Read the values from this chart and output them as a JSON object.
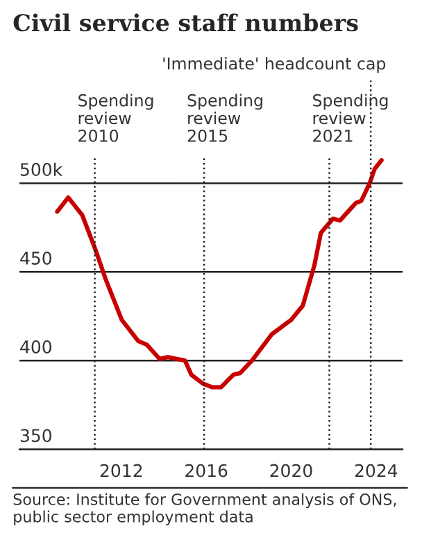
{
  "chart_data": {
    "type": "line",
    "title": "Civil service staff numbers",
    "x": [
      2008.98,
      2009.5,
      2010.16,
      2010.8,
      2011.26,
      2012.02,
      2012.8,
      2013.2,
      2013.8,
      2014.2,
      2015.0,
      2015.3,
      2015.85,
      2016.28,
      2016.7,
      2017.27,
      2017.6,
      2018.15,
      2019.1,
      2020.0,
      2020.55,
      2021.1,
      2021.4,
      2021.97,
      2022.3,
      2023.06,
      2023.3,
      2023.7,
      2023.93,
      2024.26
    ],
    "series": [
      {
        "color": "#c70000",
        "values": [
          484,
          492,
          482,
          462,
          446,
          423,
          411,
          409,
          401,
          402,
          400,
          392,
          387,
          385,
          385,
          392,
          393,
          400,
          415,
          423,
          431,
          454,
          472,
          480,
          479,
          489,
          490,
          500,
          508,
          513
        ]
      }
    ],
    "xlim": [
      2007.2,
      2025.25
    ],
    "xticks": [
      2012,
      2016,
      2020,
      2024
    ],
    "ylim": [
      350,
      515
    ],
    "yticks": [
      350,
      400,
      450,
      {
        "value": 500,
        "label": "500k"
      }
    ],
    "grid": "y",
    "marker": "none",
    "line_style": "solid",
    "ref_lines": [
      {
        "axis": "x",
        "value": 2010.75,
        "label": "Spending\nreview\n2010",
        "line_style": "dotted"
      },
      {
        "axis": "x",
        "value": 2015.9,
        "label": "Spending\nreview\n2015",
        "line_style": "dotted"
      },
      {
        "axis": "x",
        "value": 2021.8,
        "label": "Spending\nreview\n2021",
        "line_style": "dotted"
      },
      {
        "axis": "x",
        "value": 2023.75,
        "label": "'Immediate' headcount cap",
        "line_style": "dotted"
      }
    ],
    "annotations": [
      "Source: Institute for Government analysis of ONS, public sector employment data"
    ]
  }
}
